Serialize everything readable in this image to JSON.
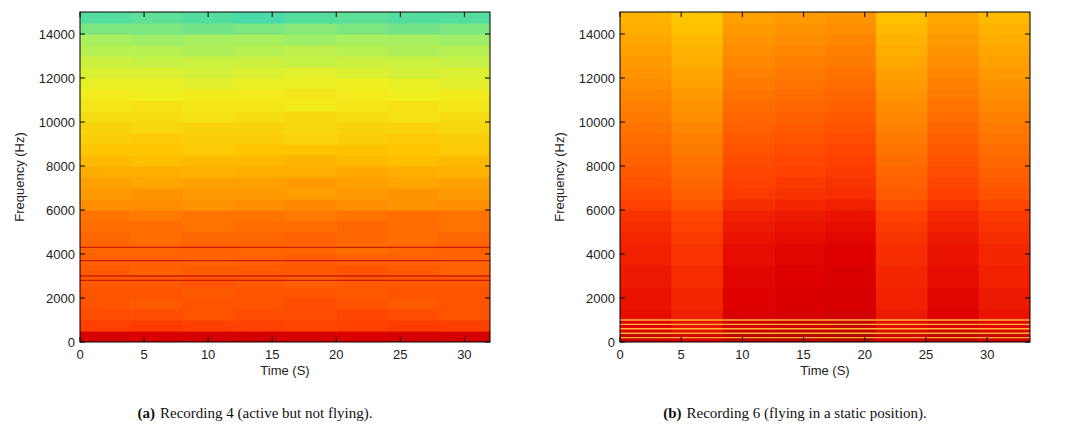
{
  "chart_data": [
    {
      "type": "heatmap",
      "xlabel": "Time (S)",
      "ylabel": "Frequency (Hz)",
      "caption_label": "(a)",
      "caption": "Recording 4 (active but not flying).",
      "xlim": [
        0,
        32
      ],
      "xticks": [
        0,
        5,
        10,
        15,
        20,
        25,
        30
      ],
      "ylim": [
        0,
        15000
      ],
      "yticks": [
        0,
        2000,
        4000,
        6000,
        8000,
        10000,
        12000,
        14000
      ],
      "clim": [
        0,
        100
      ],
      "x_edges": [
        0,
        4,
        8,
        12,
        16,
        20,
        24,
        28,
        32
      ],
      "y_edges": [
        0,
        500,
        1000,
        1500,
        2000,
        2500,
        3000,
        3500,
        4000,
        4500,
        5000,
        5500,
        6000,
        6500,
        7000,
        7500,
        8000,
        8500,
        9000,
        9500,
        10000,
        10500,
        11000,
        11500,
        12000,
        12500,
        13000,
        13500,
        14000,
        14500,
        15000
      ],
      "tonal_lines": [
        2800,
        3000,
        3700,
        4300
      ],
      "cells": [
        [
          82,
          81,
          82,
          83,
          82,
          81,
          82,
          82
        ],
        [
          70,
          71,
          70,
          70,
          69,
          70,
          71,
          70
        ],
        [
          68,
          68,
          67,
          68,
          68,
          69,
          68,
          67
        ],
        [
          67,
          66,
          67,
          67,
          68,
          67,
          66,
          67
        ],
        [
          67,
          67,
          66,
          67,
          67,
          66,
          67,
          67
        ],
        [
          66,
          66,
          67,
          66,
          65,
          66,
          66,
          66
        ],
        [
          66,
          65,
          66,
          66,
          66,
          67,
          66,
          65
        ],
        [
          65,
          65,
          64,
          65,
          66,
          65,
          65,
          64
        ],
        [
          64,
          64,
          65,
          64,
          64,
          63,
          64,
          65
        ],
        [
          64,
          63,
          64,
          64,
          65,
          64,
          63,
          64
        ],
        [
          63,
          63,
          62,
          63,
          63,
          64,
          63,
          62
        ],
        [
          62,
          61,
          62,
          62,
          61,
          62,
          63,
          62
        ],
        [
          58,
          58,
          57,
          58,
          59,
          58,
          57,
          58
        ],
        [
          56,
          57,
          56,
          56,
          55,
          56,
          57,
          56
        ],
        [
          55,
          54,
          55,
          55,
          56,
          55,
          54,
          55
        ],
        [
          53,
          53,
          52,
          53,
          53,
          54,
          53,
          52
        ],
        [
          51,
          50,
          51,
          51,
          52,
          51,
          50,
          51
        ],
        [
          49,
          49,
          48,
          49,
          49,
          50,
          49,
          48
        ],
        [
          47,
          48,
          47,
          47,
          46,
          47,
          48,
          47
        ],
        [
          46,
          45,
          46,
          46,
          45,
          46,
          46,
          45
        ],
        [
          44,
          44,
          43,
          44,
          45,
          44,
          43,
          44
        ],
        [
          42,
          43,
          42,
          42,
          41,
          42,
          43,
          42
        ],
        [
          41,
          40,
          41,
          41,
          42,
          41,
          40,
          41
        ],
        [
          39,
          39,
          38,
          39,
          39,
          40,
          39,
          38
        ],
        [
          37,
          37,
          36,
          37,
          38,
          37,
          36,
          37
        ],
        [
          35,
          34,
          35,
          35,
          34,
          35,
          35,
          34
        ],
        [
          32,
          32,
          31,
          32,
          33,
          32,
          31,
          32
        ],
        [
          30,
          29,
          30,
          30,
          29,
          30,
          30,
          29
        ],
        [
          26,
          26,
          25,
          26,
          27,
          26,
          25,
          26
        ],
        [
          22,
          23,
          22,
          21,
          22,
          23,
          22,
          22
        ]
      ]
    },
    {
      "type": "heatmap",
      "xlabel": "Time (S)",
      "ylabel": "Frequency (Hz)",
      "caption_label": "(b)",
      "caption": "Recording 6 (flying in a static position).",
      "xlim": [
        0,
        33.5
      ],
      "xticks": [
        0,
        5,
        10,
        15,
        20,
        25,
        30
      ],
      "ylim": [
        0,
        15000
      ],
      "yticks": [
        0,
        2000,
        4000,
        6000,
        8000,
        10000,
        12000,
        14000
      ],
      "clim": [
        0,
        100
      ],
      "x_edges": [
        0,
        4.2,
        8.4,
        12.6,
        16.8,
        20.9,
        25.1,
        29.3,
        33.5
      ],
      "y_edges": [
        0,
        500,
        1000,
        1500,
        2000,
        2500,
        3000,
        3500,
        4000,
        4500,
        5000,
        5500,
        6000,
        6500,
        7000,
        7500,
        8000,
        8500,
        9000,
        9500,
        10000,
        10500,
        11000,
        11500,
        12000,
        12500,
        13000,
        13500,
        14000,
        14500,
        15000
      ],
      "tonal_lines": [
        200,
        400,
        600,
        800,
        1000
      ],
      "cells": [
        [
          84,
          81,
          87,
          88,
          89,
          82,
          86,
          83
        ],
        [
          80,
          77,
          83,
          84,
          85,
          78,
          82,
          79
        ],
        [
          78,
          75,
          81,
          82,
          83,
          76,
          80,
          77
        ],
        [
          77,
          74,
          80,
          81,
          82,
          75,
          79,
          76
        ],
        [
          77,
          74,
          80,
          81,
          82,
          75,
          79,
          76
        ],
        [
          76,
          73,
          79,
          80,
          81,
          74,
          78,
          75
        ],
        [
          76,
          73,
          79,
          80,
          81,
          74,
          78,
          75
        ],
        [
          75,
          72,
          78,
          79,
          80,
          73,
          77,
          74
        ],
        [
          75,
          72,
          78,
          79,
          80,
          73,
          77,
          74
        ],
        [
          74,
          71,
          77,
          78,
          79,
          72,
          76,
          73
        ],
        [
          73,
          70,
          76,
          77,
          78,
          71,
          75,
          72
        ],
        [
          72,
          69,
          75,
          76,
          77,
          70,
          74,
          71
        ],
        [
          70,
          67,
          73,
          74,
          75,
          68,
          72,
          69
        ],
        [
          68,
          65,
          71,
          72,
          73,
          66,
          70,
          67
        ],
        [
          67,
          64,
          70,
          71,
          72,
          65,
          69,
          66
        ],
        [
          66,
          63,
          69,
          70,
          71,
          64,
          68,
          65
        ],
        [
          65,
          62,
          68,
          69,
          70,
          63,
          67,
          64
        ],
        [
          64,
          61,
          67,
          68,
          69,
          62,
          66,
          63
        ],
        [
          63,
          60,
          66,
          67,
          68,
          61,
          65,
          62
        ],
        [
          62,
          59,
          65,
          66,
          67,
          60,
          64,
          61
        ],
        [
          61,
          58,
          64,
          65,
          66,
          59,
          63,
          60
        ],
        [
          60,
          57,
          63,
          64,
          65,
          58,
          62,
          59
        ],
        [
          59,
          56,
          62,
          63,
          64,
          57,
          61,
          58
        ],
        [
          58,
          55,
          61,
          62,
          63,
          56,
          60,
          57
        ],
        [
          57,
          54,
          60,
          61,
          62,
          55,
          59,
          56
        ],
        [
          56,
          53,
          59,
          60,
          61,
          54,
          58,
          55
        ],
        [
          55,
          52,
          58,
          59,
          60,
          53,
          57,
          54
        ],
        [
          54,
          51,
          57,
          58,
          59,
          52,
          56,
          53
        ],
        [
          53,
          50,
          56,
          57,
          58,
          51,
          55,
          52
        ],
        [
          52,
          49,
          55,
          56,
          57,
          50,
          54,
          51
        ]
      ]
    }
  ]
}
